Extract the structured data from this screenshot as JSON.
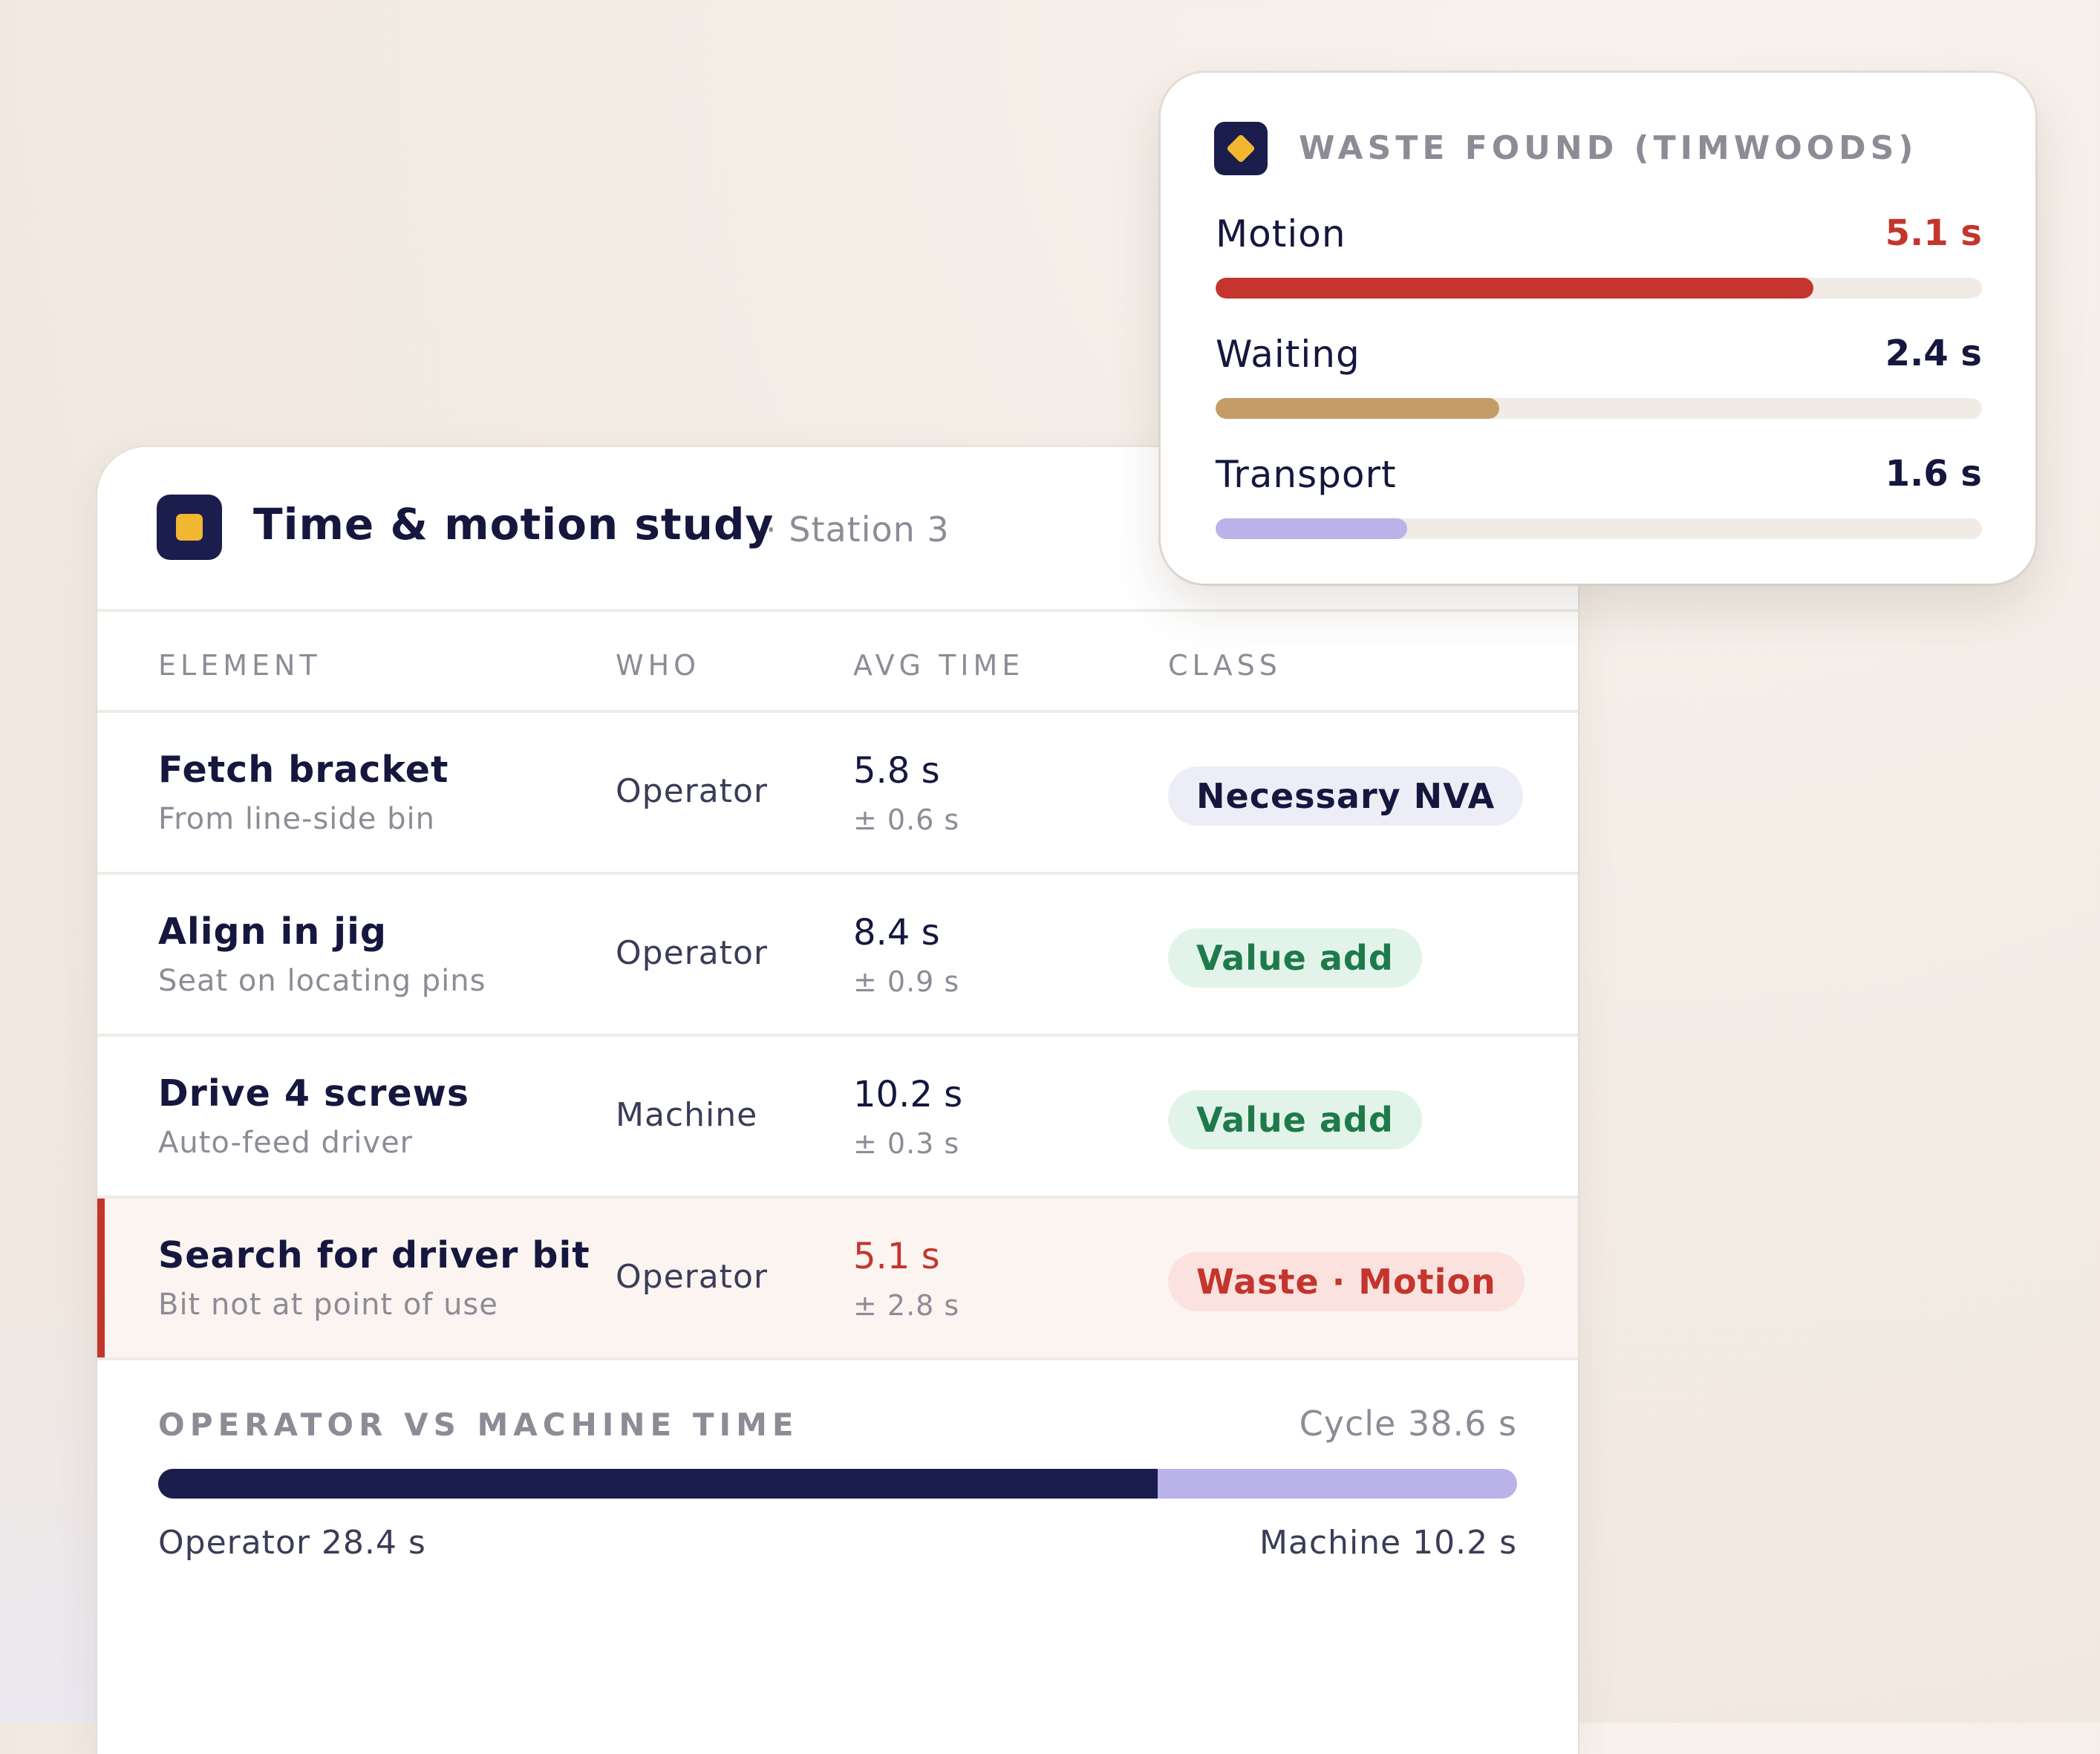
{
  "colors": {
    "navy": "#1b1d4c",
    "accent_yellow": "#f2b731",
    "waste_red": "#c4352d",
    "value_green": "#1f7a4b",
    "waiting_tan": "#c49c68",
    "machine_lavender": "#b9b3ea"
  },
  "study": {
    "title": "Time & motion study",
    "subtitle": "· Station 3",
    "icon": "square-logo-icon",
    "columns": [
      "ELEMENT",
      "WHO",
      "AVG TIME",
      "CLASS"
    ],
    "rows": [
      {
        "name": "Fetch bracket",
        "desc": "From line-side bin",
        "who": "Operator",
        "avg": "5.8 s",
        "dev": "± 0.6 s",
        "class": "Necessary NVA",
        "kind": "nva"
      },
      {
        "name": "Align in jig",
        "desc": "Seat on locating pins",
        "who": "Operator",
        "avg": "8.4 s",
        "dev": "± 0.9 s",
        "class": "Value add",
        "kind": "va"
      },
      {
        "name": "Drive 4 screws",
        "desc": "Auto-feed driver",
        "who": "Machine",
        "avg": "10.2 s",
        "dev": "± 0.3 s",
        "class": "Value add",
        "kind": "va"
      },
      {
        "name": "Search for driver bit",
        "desc": "Bit not at point of use",
        "who": "Operator",
        "avg": "5.1 s",
        "dev": "± 2.8 s",
        "class": "Waste · Motion",
        "kind": "waste"
      }
    ],
    "split": {
      "title": "OPERATOR VS MACHINE TIME",
      "cycle": "Cycle 38.6 s",
      "operator_label": "Operator 28.4 s",
      "machine_label": "Machine 10.2 s",
      "operator_seconds": 28.4,
      "machine_seconds": 10.2
    }
  },
  "waste": {
    "title": "WASTE FOUND (TIMWOODS)",
    "icon": "diamond-logo-icon",
    "items": [
      {
        "label": "Motion",
        "value": "5.1 s",
        "fraction": 0.78,
        "color": "#c4352d"
      },
      {
        "label": "Waiting",
        "value": "2.4 s",
        "fraction": 0.37,
        "color": "#c49c68"
      },
      {
        "label": "Transport",
        "value": "1.6 s",
        "fraction": 0.25,
        "color": "#b9b3ea"
      }
    ]
  }
}
